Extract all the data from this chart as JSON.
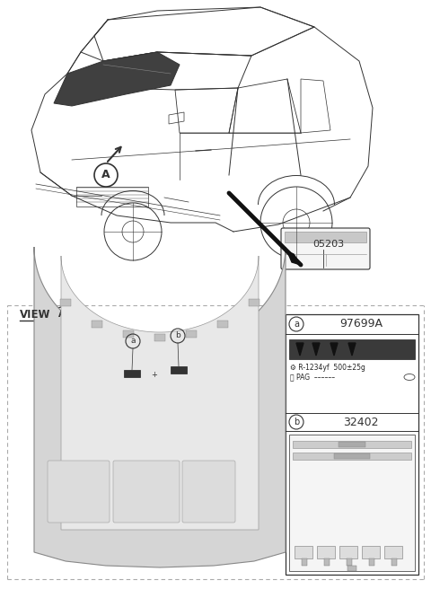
{
  "bg_color": "#ffffff",
  "part_number_main": "05203",
  "part_a_number": "97699A",
  "part_b_number": "32402",
  "label_a_text1": "R-1234yf  500±25g",
  "label_a_text2": "PAG",
  "line_color": "#333333",
  "dark_color": "#555555",
  "light_gray": "#d8d8d8",
  "mid_gray": "#bbbbbb",
  "panel_gray": "#c8c8c8"
}
